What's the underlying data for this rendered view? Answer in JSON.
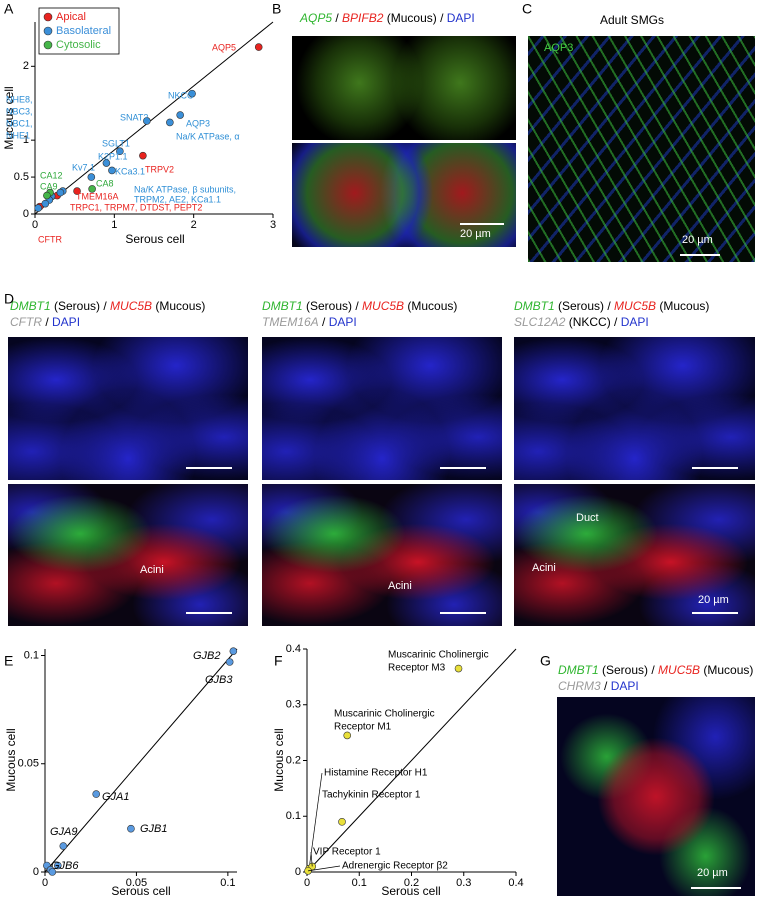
{
  "panel_labels": [
    "A",
    "B",
    "C",
    "D",
    "E",
    "F",
    "G"
  ],
  "chart_data": [
    {
      "type": "scatter",
      "x_label": "Serous cell",
      "y_label": "Mucous cell",
      "xlim": [
        0,
        3
      ],
      "ylim": [
        0,
        2.6
      ],
      "xticks": [
        0,
        1,
        2,
        3
      ],
      "yticks": [
        0,
        0.5,
        1,
        2
      ],
      "legend": "top-left",
      "series": [
        {
          "name": "Apical",
          "color": "#e8231f",
          "x": [
            2.82,
            1.36,
            0.53,
            0.28,
            0.06
          ],
          "values": [
            2.26,
            0.79,
            0.31,
            0.25,
            0.1
          ]
        },
        {
          "name": "Basolateral",
          "color": "#3b8fd8",
          "x": [
            1.98,
            1.83,
            1.7,
            1.41,
            1.07,
            0.9,
            0.97,
            0.71,
            0.35,
            0.32,
            0.21,
            0.18,
            0.13,
            0.04
          ],
          "values": [
            1.63,
            1.34,
            1.24,
            1.26,
            0.85,
            0.69,
            0.59,
            0.5,
            0.31,
            0.29,
            0.24,
            0.19,
            0.14,
            0.08
          ]
        },
        {
          "name": "Cytosolic",
          "color": "#45b549",
          "x": [
            0.72,
            0.19,
            0.15
          ],
          "values": [
            0.34,
            0.29,
            0.25
          ]
        }
      ],
      "annotations": [
        {
          "text": "AQP5",
          "color": "#e8231f"
        },
        {
          "text": "NKCC",
          "color": "#2f8fd6"
        },
        {
          "text": "SNAT2",
          "color": "#2f8fd6"
        },
        {
          "text": "AQP3",
          "color": "#2f8fd6"
        },
        {
          "text": "Na/K ATPase, α",
          "color": "#2f8fd6"
        },
        {
          "text": "SGLT1",
          "color": "#2f8fd6"
        },
        {
          "text": "TRPV2",
          "color": "#e8231f"
        },
        {
          "text": "NHE8,",
          "color": "#2f8fd6"
        },
        {
          "text": "NBC3,",
          "color": "#2f8fd6"
        },
        {
          "text": "NBC1,",
          "color": "#2f8fd6"
        },
        {
          "text": "NHE1",
          "color": "#2f8fd6"
        },
        {
          "text": "K2P1.1",
          "color": "#2f8fd6"
        },
        {
          "text": "KCa3.1",
          "color": "#2f8fd6"
        },
        {
          "text": "Kv7.1",
          "color": "#2f8fd6"
        },
        {
          "text": "CA8",
          "color": "#2fa83a"
        },
        {
          "text": "CA12",
          "color": "#2fa83a"
        },
        {
          "text": "CA9",
          "color": "#2fa83a"
        },
        {
          "text": "TMEM16A",
          "color": "#e8231f"
        },
        {
          "text": "Na/K ATPase, β subunits,",
          "color": "#2f8fd6"
        },
        {
          "text": "TRPM2, AE2, KCa1.1",
          "color": "#2f8fd6"
        },
        {
          "text": "TRPC1, TRPM7, DTDST, PEPT2",
          "color": "#e8231f"
        },
        {
          "text": "CFTR",
          "color": "#e8231f"
        }
      ]
    },
    {
      "type": "scatter",
      "x_label": "Serous cell",
      "y_label": "Mucous cell",
      "xlim": [
        0,
        0.105
      ],
      "ylim": [
        0,
        0.103
      ],
      "xticks": [
        0,
        0.05,
        0.1
      ],
      "yticks": [
        0,
        0.05,
        0.1
      ],
      "series": [
        {
          "color": "#5a9ae0",
          "x": [
            0.103,
            0.101,
            0.028,
            0.047,
            0.01,
            0.007,
            0.001,
            0.003,
            0.004
          ],
          "values": [
            0.102,
            0.097,
            0.036,
            0.02,
            0.012,
            0.003,
            0.003,
            0.001,
            0.0
          ],
          "labels": [
            "GJB2",
            "GJB3",
            "GJA1",
            "GJB1",
            "GJA9",
            "GJB6",
            null,
            null,
            null
          ]
        }
      ]
    },
    {
      "type": "scatter",
      "x_label": "Serous cell",
      "y_label": "Mucous cell",
      "xlim": [
        0,
        0.4
      ],
      "ylim": [
        0,
        0.4
      ],
      "xticks": [
        0,
        0.1,
        0.2,
        0.3,
        0.4
      ],
      "yticks": [
        0,
        0.1,
        0.2,
        0.3,
        0.4
      ],
      "series": [
        {
          "color": "#e9e03a",
          "x": [
            0.29,
            0.077,
            0.004,
            0.067,
            0.01,
            0.002
          ],
          "values": [
            0.365,
            0.245,
            0.006,
            0.09,
            0.01,
            0.002
          ],
          "labels": [
            [
              "Muscarinic Cholinergic",
              "Receptor M3"
            ],
            [
              "Muscarinic Cholinergic",
              "Receptor M1"
            ],
            [
              "Histamine Receptor H1"
            ],
            [
              "Tachykinin Receptor 1"
            ],
            [
              "VIP Receptor 1"
            ],
            [
              "Adrenergic Receptor β2"
            ]
          ]
        }
      ]
    }
  ],
  "images": {
    "B": {
      "header": [
        {
          "text": "AQP5",
          "color": "#2fb52f",
          "italic": true
        },
        {
          "text": " / ",
          "color": "#000",
          "italic": false
        },
        {
          "text": "BPIFB2",
          "color": "#e8231f",
          "italic": true
        },
        {
          "text": " (Mucous) / ",
          "color": "#000",
          "italic": false
        },
        {
          "text": "DAPI",
          "color": "#2233cc",
          "italic": false
        }
      ],
      "scale_bar": "20 µm"
    },
    "C": {
      "title": "Adult SMGs",
      "stain": "AQP3",
      "scale_bar": "20 µm"
    },
    "D": {
      "columns": [
        [
          [
            {
              "text": "DMBT1",
              "color": "#2fb52f",
              "italic": true
            },
            {
              "text": " (Serous) / ",
              "color": "#000",
              "italic": false
            },
            {
              "text": "MUC5B",
              "color": "#e8231f",
              "italic": true
            },
            {
              "text": " (Mucous)",
              "color": "#000",
              "italic": false
            }
          ],
          [
            {
              "text": "CFTR",
              "color": "#9a9a9a",
              "italic": true
            },
            {
              "text": " / ",
              "color": "#000",
              "italic": false
            },
            {
              "text": "DAPI",
              "color": "#2233cc",
              "italic": false
            }
          ]
        ],
        [
          [
            {
              "text": "DMBT1",
              "color": "#2fb52f",
              "italic": true
            },
            {
              "text": " (Serous) / ",
              "color": "#000",
              "italic": false
            },
            {
              "text": "MUC5B",
              "color": "#e8231f",
              "italic": true
            },
            {
              "text": " (Mucous)",
              "color": "#000",
              "italic": false
            }
          ],
          [
            {
              "text": "TMEM16A",
              "color": "#9a9a9a",
              "italic": true
            },
            {
              "text": " / ",
              "color": "#000",
              "italic": false
            },
            {
              "text": "DAPI",
              "color": "#2233cc",
              "italic": false
            }
          ]
        ],
        [
          [
            {
              "text": "DMBT1",
              "color": "#2fb52f",
              "italic": true
            },
            {
              "text": " (Serous) / ",
              "color": "#000",
              "italic": false
            },
            {
              "text": "MUC5B",
              "color": "#e8231f",
              "italic": true
            },
            {
              "text": " (Mucous)",
              "color": "#000",
              "italic": false
            }
          ],
          [
            {
              "text": "SLC12A2",
              "color": "#9a9a9a",
              "italic": true
            },
            {
              "text": " (NKCC) / ",
              "color": "#000",
              "italic": false
            },
            {
              "text": "DAPI",
              "color": "#2233cc",
              "italic": false
            }
          ]
        ]
      ],
      "labels": [
        "Acini",
        "Acini",
        "Duct",
        "Acini"
      ],
      "scale_bar": "20 µm"
    },
    "G": {
      "header": [
        [
          {
            "text": "DMBT1",
            "color": "#2fb52f",
            "italic": true
          },
          {
            "text": " (Serous) / ",
            "color": "#000",
            "italic": false
          },
          {
            "text": "MUC5B",
            "color": "#e8231f",
            "italic": true
          },
          {
            "text": " (Mucous)",
            "color": "#000",
            "italic": false
          }
        ],
        [
          {
            "text": "CHRM3",
            "color": "#9a9a9a",
            "italic": true
          },
          {
            "text": " / ",
            "color": "#000",
            "italic": false
          },
          {
            "text": "DAPI",
            "color": "#2233cc",
            "italic": false
          }
        ]
      ],
      "scale_bar": "20 µm"
    }
  }
}
